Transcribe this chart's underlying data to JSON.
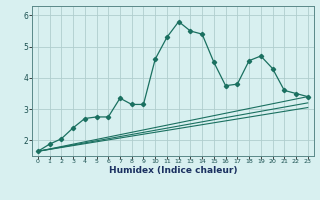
{
  "xlabel": "Humidex (Indice chaleur)",
  "bg_color": "#d8f0f0",
  "grid_color": "#b0cece",
  "line_color": "#1a7060",
  "xlim": [
    -0.5,
    23.5
  ],
  "ylim": [
    1.5,
    6.3
  ],
  "yticks": [
    2,
    3,
    4,
    5,
    6
  ],
  "xticks": [
    0,
    1,
    2,
    3,
    4,
    5,
    6,
    7,
    8,
    9,
    10,
    11,
    12,
    13,
    14,
    15,
    16,
    17,
    18,
    19,
    20,
    21,
    22,
    23
  ],
  "series1_x": [
    0,
    1,
    2,
    3,
    4,
    5,
    6,
    7,
    8,
    9,
    10,
    11,
    12,
    13,
    14,
    15,
    16,
    17,
    18,
    19,
    20,
    21,
    22,
    23
  ],
  "series1_y": [
    1.65,
    1.88,
    2.05,
    2.4,
    2.7,
    2.75,
    2.75,
    3.35,
    3.15,
    3.15,
    4.6,
    5.3,
    5.8,
    5.5,
    5.4,
    4.5,
    3.75,
    3.8,
    4.55,
    4.7,
    4.3,
    3.6,
    3.5,
    3.4
  ],
  "line2_x": [
    0,
    23
  ],
  "line2_y": [
    1.65,
    3.4
  ],
  "line3_x": [
    0,
    23
  ],
  "line3_y": [
    1.65,
    3.2
  ],
  "line4_x": [
    0,
    23
  ],
  "line4_y": [
    1.65,
    3.05
  ]
}
